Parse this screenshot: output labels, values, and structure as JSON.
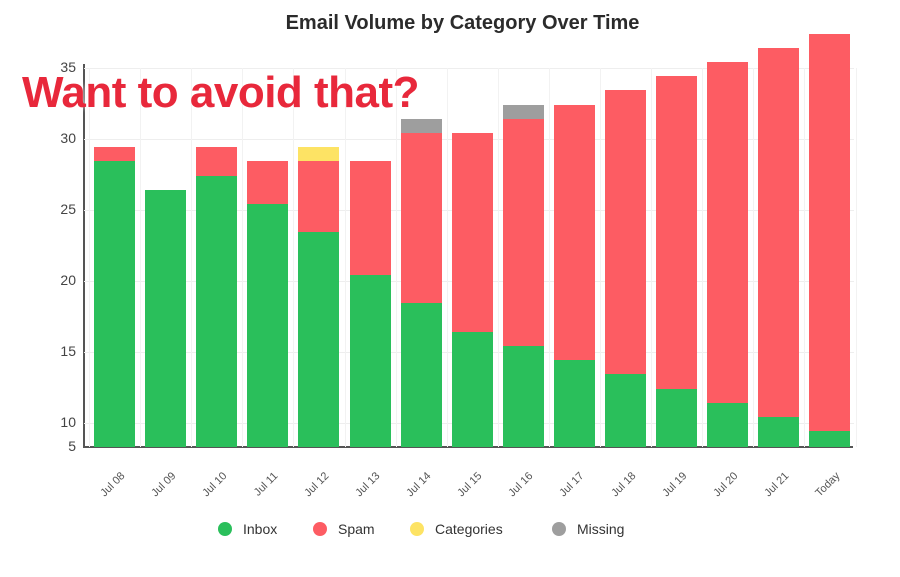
{
  "overlay_text": "Want to avoid that?",
  "chart_data": {
    "type": "bar",
    "stacked": true,
    "title": "Email Volume by Category Over Time",
    "xlabel": "",
    "ylabel": "",
    "categories": [
      "Jul 08",
      "Jul 09",
      "Jul 10",
      "Jul 11",
      "Jul 12",
      "Jul 13",
      "Jul 14",
      "Jul 15",
      "Jul 16",
      "Jul 17",
      "Jul 18",
      "Jul 19",
      "Jul 20",
      "Jul 21",
      "Today"
    ],
    "series": [
      {
        "name": "Inbox",
        "color": "#2abf5b",
        "values": [
          28,
          26,
          27,
          25,
          23,
          20,
          18,
          16,
          15,
          14,
          13,
          12,
          11,
          10,
          9
        ]
      },
      {
        "name": "Spam",
        "color": "#fd5c63",
        "values": [
          1,
          0,
          2,
          3,
          5,
          8,
          12,
          14,
          16,
          18,
          20,
          22,
          24,
          26,
          28
        ]
      },
      {
        "name": "Categories",
        "color": "#fde364",
        "values": [
          0,
          0,
          0,
          0,
          1,
          0,
          0,
          0,
          0,
          0,
          0,
          0,
          0,
          0,
          0
        ]
      },
      {
        "name": "Missing",
        "color": "#9e9e9e",
        "values": [
          0,
          0,
          0,
          0,
          0,
          0,
          1,
          0,
          1,
          0,
          0,
          0,
          0,
          0,
          0
        ]
      }
    ],
    "yticks": [
      5,
      10,
      15,
      20,
      25,
      30,
      35
    ],
    "ylim": [
      5,
      37
    ],
    "grid": true,
    "legend_position": "bottom"
  },
  "legend": [
    {
      "label": "Inbox",
      "color": "#2abf5b"
    },
    {
      "label": "Spam",
      "color": "#fd5c63"
    },
    {
      "label": "Categories",
      "color": "#fde364"
    },
    {
      "label": "Missing",
      "color": "#9e9e9e"
    }
  ]
}
